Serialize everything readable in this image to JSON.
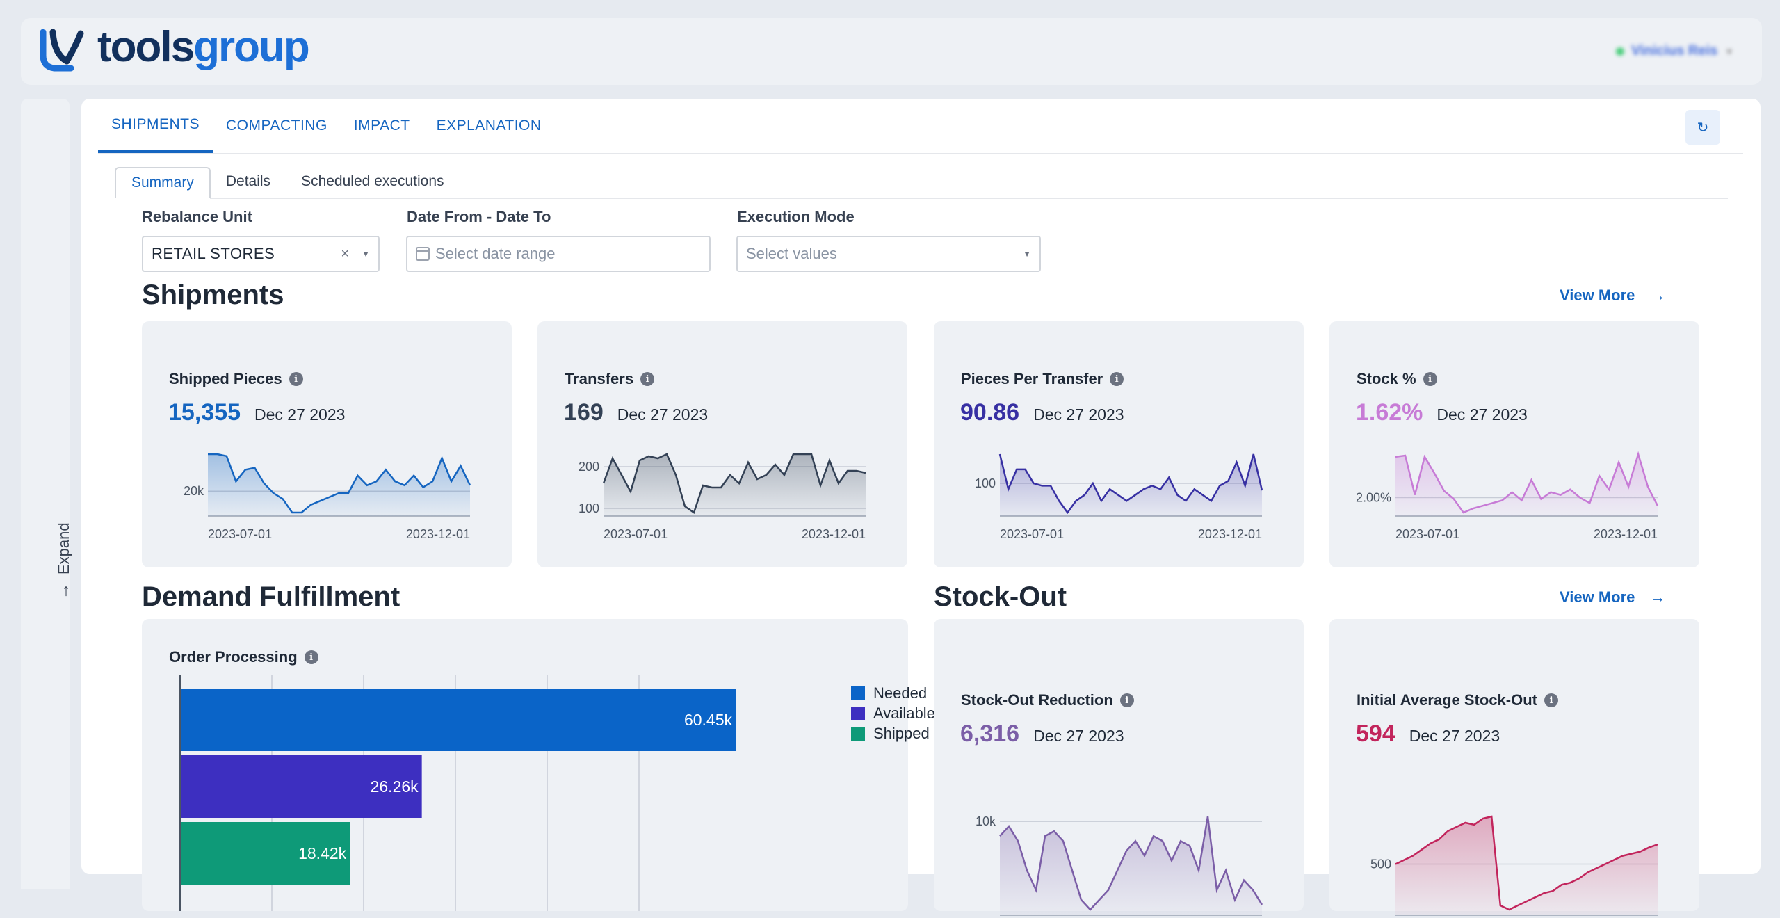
{
  "brand": {
    "name_part1": "tools",
    "name_part2": "group"
  },
  "user": {
    "name": "Vinicius Reis"
  },
  "sidebar": {
    "expand_label": "Expand"
  },
  "tabs": [
    {
      "label": "SHIPMENTS",
      "active": true
    },
    {
      "label": "COMPACTING"
    },
    {
      "label": "IMPACT"
    },
    {
      "label": "EXPLANATION"
    }
  ],
  "subtabs": [
    {
      "label": "Summary",
      "active": true
    },
    {
      "label": "Details"
    },
    {
      "label": "Scheduled executions"
    }
  ],
  "filters": {
    "rebalance_unit": {
      "label": "Rebalance Unit",
      "value": "RETAIL STORES"
    },
    "date_range": {
      "label": "Date From - Date To",
      "placeholder": "Select date range"
    },
    "execution_mode": {
      "label": "Execution Mode",
      "placeholder": "Select values"
    }
  },
  "shipments": {
    "title": "Shipments",
    "view_more": "View More",
    "cards": [
      {
        "title": "Shipped Pieces",
        "value": "15,355",
        "date": "Dec 27 2023",
        "color": "#1565c0",
        "chart_data": {
          "type": "area",
          "x_ticks": [
            "2023-07-01",
            "2023-12-01"
          ],
          "y_ticks": [
            "20k"
          ],
          "values": [
            26,
            26,
            25,
            12,
            18,
            19,
            11,
            6,
            3,
            -4,
            -4,
            0,
            2,
            4,
            6,
            6,
            15,
            10,
            12,
            18,
            12,
            10,
            15,
            9,
            12,
            24,
            12,
            20,
            10
          ]
        }
      },
      {
        "title": "Transfers",
        "value": "169",
        "date": "Dec 27 2023",
        "color": "#334155",
        "chart_data": {
          "type": "area",
          "x_ticks": [
            "2023-07-01",
            "2023-12-01"
          ],
          "y_ticks": [
            "200",
            "100"
          ],
          "values": [
            160,
            220,
            180,
            140,
            215,
            225,
            220,
            230,
            180,
            105,
            90,
            155,
            150,
            150,
            180,
            160,
            210,
            170,
            180,
            205,
            180,
            230,
            230,
            230,
            155,
            215,
            160,
            190,
            190,
            185
          ]
        }
      },
      {
        "title": "Pieces Per Transfer",
        "value": "90.86",
        "date": "Dec 27 2023",
        "color": "#3730a3",
        "chart_data": {
          "type": "area",
          "x_ticks": [
            "2023-07-01",
            "2023-12-01"
          ],
          "y_ticks": [
            "100"
          ],
          "values": [
            125,
            95,
            112,
            112,
            100,
            98,
            98,
            85,
            75,
            85,
            90,
            100,
            85,
            95,
            90,
            85,
            90,
            95,
            98,
            95,
            105,
            90,
            85,
            95,
            90,
            85,
            98,
            102,
            118,
            98,
            125,
            94
          ]
        }
      },
      {
        "title": "Stock %",
        "value": "1.62%",
        "date": "Dec 27 2023",
        "color": "#c77bd6",
        "chart_data": {
          "type": "area",
          "x_ticks": [
            "2023-07-01",
            "2023-12-01"
          ],
          "y_ticks": [
            "2.00%"
          ],
          "values": [
            2.3,
            2.31,
            2.02,
            2.3,
            2.18,
            2.05,
            1.99,
            1.89,
            1.92,
            1.94,
            1.96,
            1.98,
            2.04,
            1.98,
            2.13,
            1.99,
            2.04,
            2.02,
            2.06,
            2.0,
            1.96,
            2.16,
            2.06,
            2.26,
            2.08,
            2.32,
            2.08,
            1.94
          ]
        }
      }
    ]
  },
  "demand": {
    "title": "Demand Fulfillment",
    "card_title": "Order Processing",
    "chart_data": {
      "type": "bar",
      "orientation": "horizontal",
      "series": [
        {
          "name": "Needed",
          "value": 60450,
          "label": "60.45k",
          "color": "#0a64c8"
        },
        {
          "name": "Available",
          "value": 26260,
          "label": "26.26k",
          "color": "#3d2fc0"
        },
        {
          "name": "Shipped",
          "value": 18420,
          "label": "18.42k",
          "color": "#0e9a78"
        }
      ],
      "xlim": [
        0,
        60450
      ],
      "legend": "top-right"
    }
  },
  "stockout": {
    "title": "Stock-Out",
    "view_more": "View More",
    "cards": [
      {
        "title": "Stock-Out Reduction",
        "value": "6,316",
        "date": "Dec 27 2023",
        "color": "#7b5ea7",
        "chart_data": {
          "type": "area",
          "y_ticks": [
            "10k"
          ],
          "values": [
            8.5,
            9.5,
            8,
            5,
            3,
            8.5,
            9,
            8,
            5,
            2,
            1,
            2,
            3,
            5,
            7,
            8,
            6.5,
            8.5,
            8,
            6,
            8,
            7.5,
            5,
            10.5,
            3,
            5,
            2,
            4,
            3,
            1.5
          ]
        }
      },
      {
        "title": "Initial Average Stock-Out",
        "value": "594",
        "date": "Dec 27 2023",
        "color": "#c2255c",
        "chart_data": {
          "type": "area",
          "y_ticks": [
            "500"
          ],
          "values": [
            500,
            520,
            540,
            570,
            600,
            620,
            660,
            680,
            700,
            690,
            720,
            730,
            300,
            280,
            300,
            320,
            340,
            360,
            370,
            400,
            410,
            430,
            460,
            480,
            500,
            520,
            540,
            550,
            560,
            580,
            595
          ]
        }
      }
    ]
  }
}
